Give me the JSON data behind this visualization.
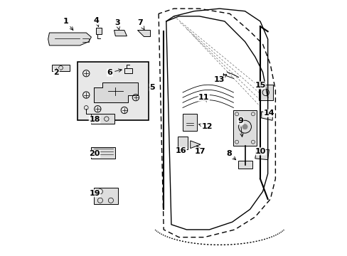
{
  "bg_color": "#ffffff",
  "line_color": "#000000",
  "box_fill": "#e8e8e8",
  "font_size": 8,
  "dpi": 100
}
